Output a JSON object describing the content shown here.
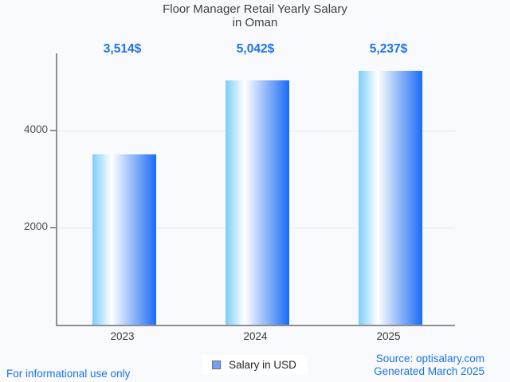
{
  "title": {
    "line1": "Floor Manager Retail Yearly Salary",
    "line2": "in Oman"
  },
  "chart_data": {
    "type": "bar",
    "title": "Floor Manager Retail Yearly Salary in Oman",
    "categories": [
      "2023",
      "2024",
      "2025"
    ],
    "values": [
      3514,
      5042,
      5237
    ],
    "value_labels": [
      "3,514$",
      "5,042$",
      "5,237$"
    ],
    "series": [
      {
        "name": "Salary in USD",
        "values": [
          3514,
          5042,
          5237
        ]
      }
    ],
    "xlabel": "",
    "ylabel": "",
    "ylim": [
      0,
      5600
    ],
    "yticks": [
      2000,
      4000
    ],
    "ytick_labels": [
      "2000",
      "4000"
    ],
    "grid": true,
    "legend_position": "bottom",
    "colors": {
      "bar_gradient_left": "#7ccdfb",
      "bar_gradient_mid": "#ffffff",
      "bar_gradient_right": "#1a6cf6",
      "value_label": "#1a73e8",
      "axis": "#8f8f8f",
      "gridline": "#e5e8ec",
      "tick_label": "#4e4e4e",
      "category_label": "#3a3a3a",
      "title": "#3c4043",
      "background": "#f9fafd"
    }
  },
  "legend": {
    "label": "Salary in USD",
    "marker_color": "#6fa2ef",
    "marker_border": "#6e6e6e"
  },
  "footer": {
    "disclaimer": "For informational use only",
    "source": "Source: optisalary.com",
    "generated": "Generated March 2025",
    "link_color": "#1a73e8"
  }
}
